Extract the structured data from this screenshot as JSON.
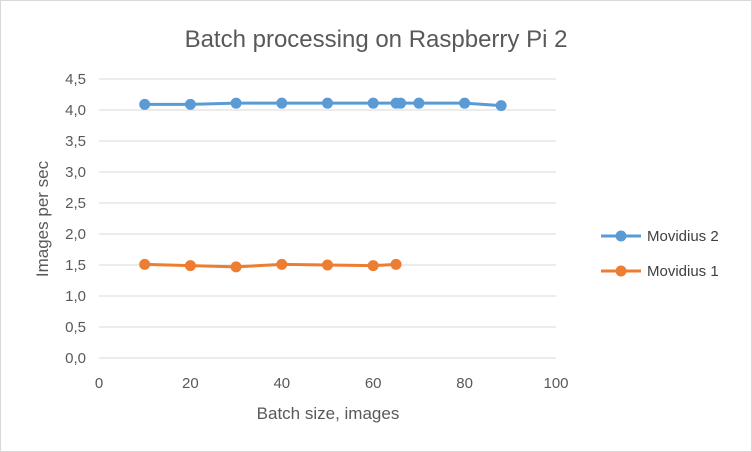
{
  "chart_data": {
    "type": "line",
    "title": "Batch processing  on Raspberry Pi 2",
    "xlabel": "Batch size, images",
    "ylabel": "Images per sec",
    "xlim": [
      0,
      100
    ],
    "ylim": [
      0,
      4.5
    ],
    "x_ticks": [
      "0",
      "20",
      "40",
      "60",
      "80",
      "100"
    ],
    "y_ticks": [
      "0,0",
      "0,5",
      "1,0",
      "1,5",
      "2,0",
      "2,5",
      "3,0",
      "3,5",
      "4,0",
      "4,5"
    ],
    "grid": "horizontal",
    "legend_position": "right",
    "series": [
      {
        "name": "Movidius 2",
        "color": "#5b9bd5",
        "x": [
          10,
          20,
          30,
          40,
          50,
          60,
          65,
          66,
          70,
          80,
          88
        ],
        "y": [
          4.09,
          4.09,
          4.11,
          4.11,
          4.11,
          4.11,
          4.11,
          4.11,
          4.11,
          4.11,
          4.07
        ]
      },
      {
        "name": "Movidius 1",
        "color": "#ed7d31",
        "x": [
          10,
          20,
          30,
          40,
          50,
          60,
          65
        ],
        "y": [
          1.51,
          1.49,
          1.47,
          1.51,
          1.5,
          1.49,
          1.51
        ]
      }
    ]
  }
}
